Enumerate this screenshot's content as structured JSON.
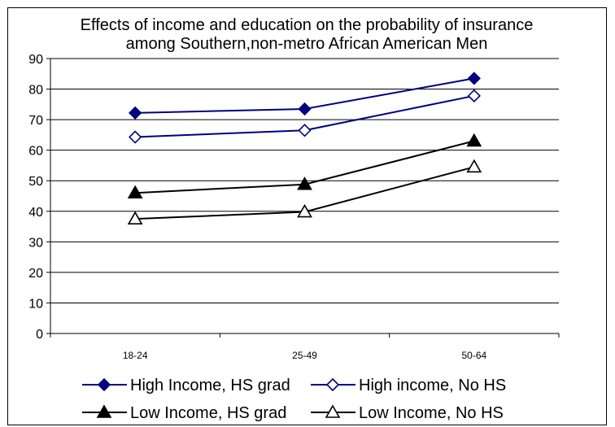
{
  "chart_data": {
    "type": "line",
    "title_lines": [
      "Effects of income and education on the probability of insurance",
      "among Southern,non-metro African American Men"
    ],
    "xlabel": "",
    "ylabel": "",
    "categories": [
      "18-24",
      "25-49",
      "50-64"
    ],
    "ylim": [
      0,
      90
    ],
    "yticks": [
      0,
      10,
      20,
      30,
      40,
      50,
      60,
      70,
      80,
      90
    ],
    "grid": true,
    "legend_position": "bottom",
    "series": [
      {
        "name": "High Income, HS grad",
        "values": [
          72.2,
          73.5,
          83.5
        ],
        "color": "#000080",
        "marker": "diamond",
        "filled": true
      },
      {
        "name": "High income, No HS",
        "values": [
          64.3,
          66.5,
          77.8
        ],
        "color": "#000080",
        "marker": "diamond",
        "filled": false
      },
      {
        "name": "Low Income, HS grad",
        "values": [
          46.0,
          48.8,
          63.0
        ],
        "color": "#000000",
        "marker": "triangle",
        "filled": true
      },
      {
        "name": "Low Income, No HS",
        "values": [
          37.5,
          39.8,
          54.5
        ],
        "color": "#000000",
        "marker": "triangle",
        "filled": false
      }
    ]
  }
}
